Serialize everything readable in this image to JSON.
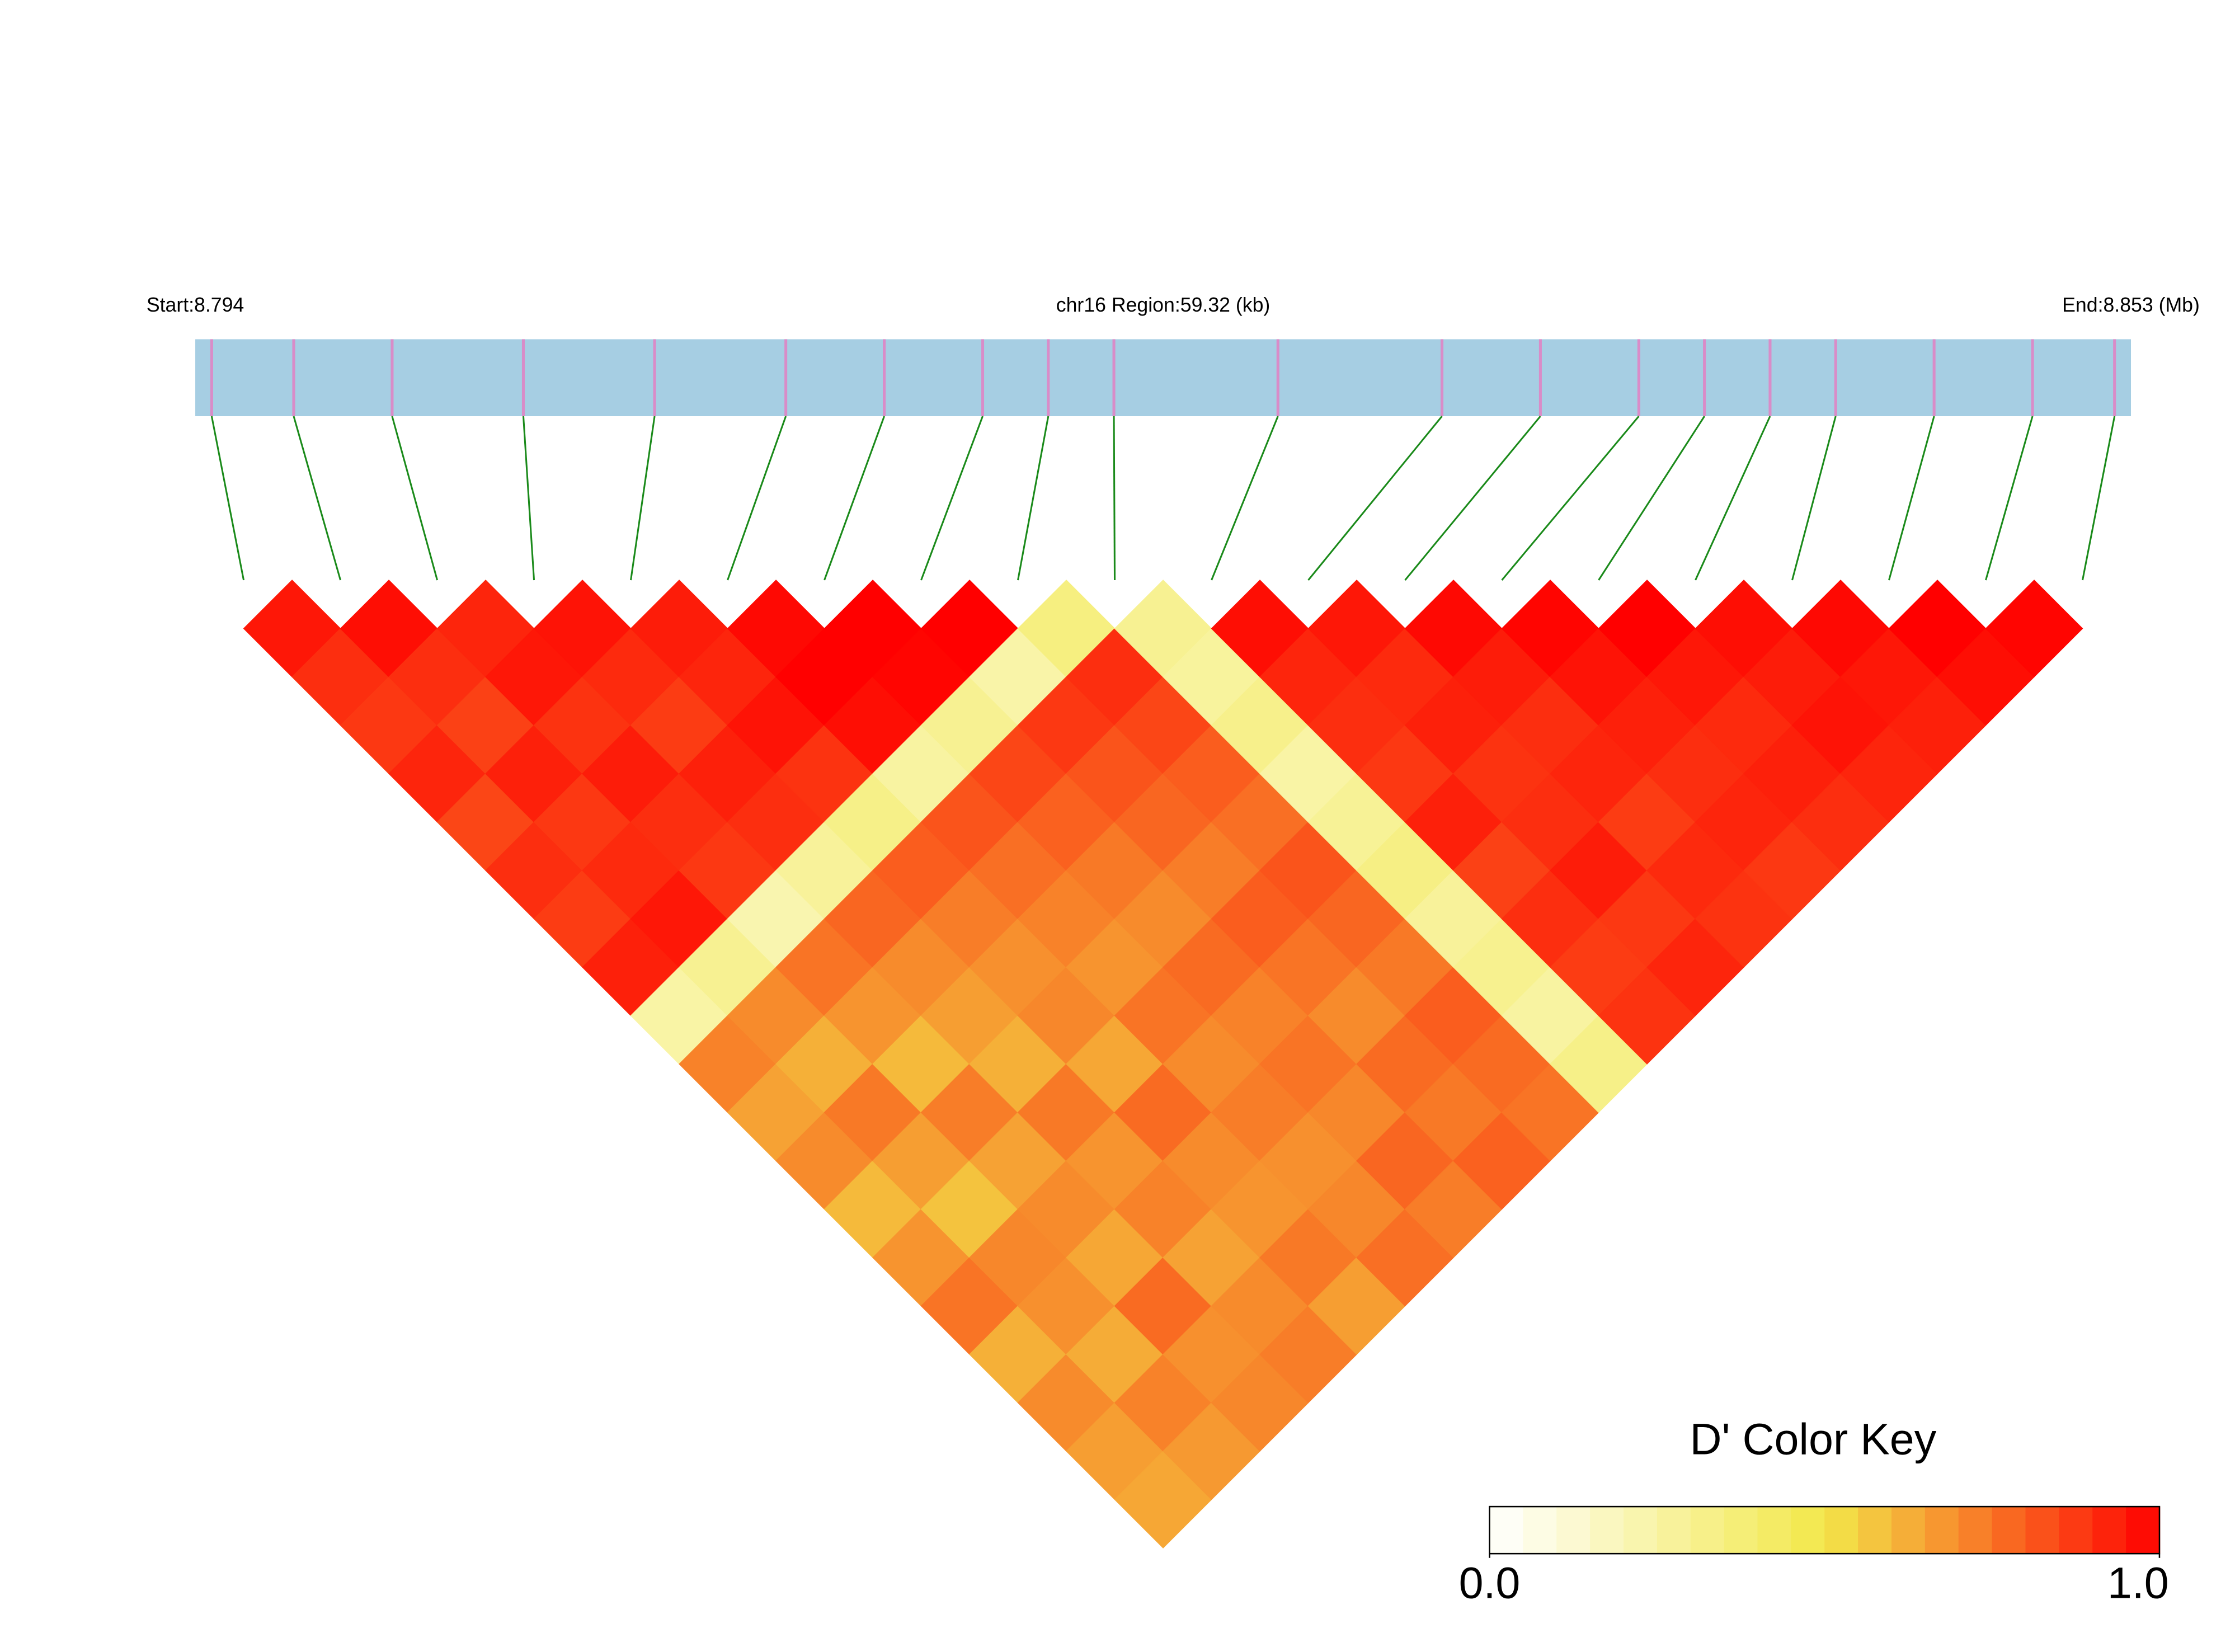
{
  "chart_data": {
    "type": "ld_heatmap",
    "start_label": "Start:8.794",
    "title": "chr16 Region:59.32 (kb)",
    "end_label": "End:8.853 (Mb)",
    "xlim": [
      8.794,
      8.853
    ],
    "positions": [
      8.7945,
      8.797,
      8.8,
      8.804,
      8.808,
      8.812,
      8.815,
      8.818,
      8.82,
      8.822,
      8.827,
      8.832,
      8.835,
      8.838,
      8.84,
      8.842,
      8.844,
      8.847,
      8.85,
      8.8525
    ],
    "bar_color": "#a6cee3",
    "snp_color": "#d98cc8",
    "connector_color": "#1a8a1a",
    "dprime": [
      [
        0.95,
        0.9,
        0.88,
        0.92,
        0.85,
        0.9,
        0.87,
        0.93,
        0.25,
        0.72,
        0.65,
        0.7,
        0.6,
        0.68,
        0.75,
        0.62,
        0.7,
        0.66,
        0.64
      ],
      [
        0.97,
        0.9,
        0.86,
        0.93,
        0.88,
        0.91,
        0.95,
        0.3,
        0.7,
        0.62,
        0.74,
        0.66,
        0.58,
        0.71,
        0.69,
        0.63,
        0.72,
        0.67
      ],
      [
        0.92,
        0.95,
        0.89,
        0.94,
        0.9,
        0.88,
        0.22,
        0.75,
        0.68,
        0.6,
        0.73,
        0.65,
        0.7,
        0.64,
        0.77,
        0.69,
        0.71
      ],
      [
        0.96,
        0.91,
        0.87,
        0.93,
        0.9,
        0.28,
        0.78,
        0.7,
        0.66,
        0.62,
        0.74,
        0.68,
        0.72,
        0.65,
        0.7,
        0.73
      ],
      [
        0.94,
        0.92,
        0.96,
        0.89,
        0.33,
        0.8,
        0.73,
        0.69,
        0.71,
        0.64,
        0.77,
        0.7,
        0.68,
        0.74,
        0.66
      ],
      [
        0.98,
        1.0,
        0.97,
        0.26,
        0.82,
        0.76,
        0.72,
        0.68,
        0.75,
        0.7,
        0.73,
        0.69,
        0.71,
        0.76
      ],
      [
        1.0,
        0.99,
        0.3,
        0.85,
        0.79,
        0.74,
        0.7,
        0.77,
        0.72,
        0.75,
        0.71,
        0.78,
        0.73
      ],
      [
        1.0,
        0.24,
        0.88,
        0.82,
        0.78,
        0.73,
        0.8,
        0.75,
        0.7,
        0.77,
        0.74,
        0.79
      ],
      [
        0.35,
        0.9,
        0.85,
        0.8,
        0.76,
        0.82,
        0.78,
        0.74,
        0.8,
        0.77,
        0.75
      ],
      [
        0.3,
        0.27,
        0.32,
        0.25,
        0.29,
        0.34,
        0.28,
        0.31,
        0.26,
        0.33
      ],
      [
        0.97,
        0.92,
        0.9,
        0.88,
        0.93,
        0.86,
        0.9,
        0.87,
        0.89
      ],
      [
        0.95,
        0.91,
        0.93,
        0.89,
        0.9,
        0.94,
        0.88,
        0.92
      ],
      [
        0.98,
        0.94,
        0.9,
        0.92,
        0.87,
        0.91,
        0.89
      ],
      [
        0.99,
        0.96,
        0.93,
        0.9,
        0.92,
        0.88
      ],
      [
        1.0,
        0.95,
        0.91,
        0.93,
        0.9
      ],
      [
        0.97,
        0.94,
        0.96,
        0.92
      ],
      [
        0.98,
        0.95,
        0.93
      ],
      [
        1.0,
        0.97
      ],
      [
        0.99
      ]
    ],
    "colorscale": [
      "#ffffff",
      "#f2e84a",
      "#ff0000"
    ],
    "legend_title": "D' Color Key",
    "legend_lim": [
      0,
      1
    ],
    "legend_ticks": [
      {
        "value": 0,
        "label": "0.0"
      },
      {
        "value": 1,
        "label": "1.0"
      }
    ]
  }
}
